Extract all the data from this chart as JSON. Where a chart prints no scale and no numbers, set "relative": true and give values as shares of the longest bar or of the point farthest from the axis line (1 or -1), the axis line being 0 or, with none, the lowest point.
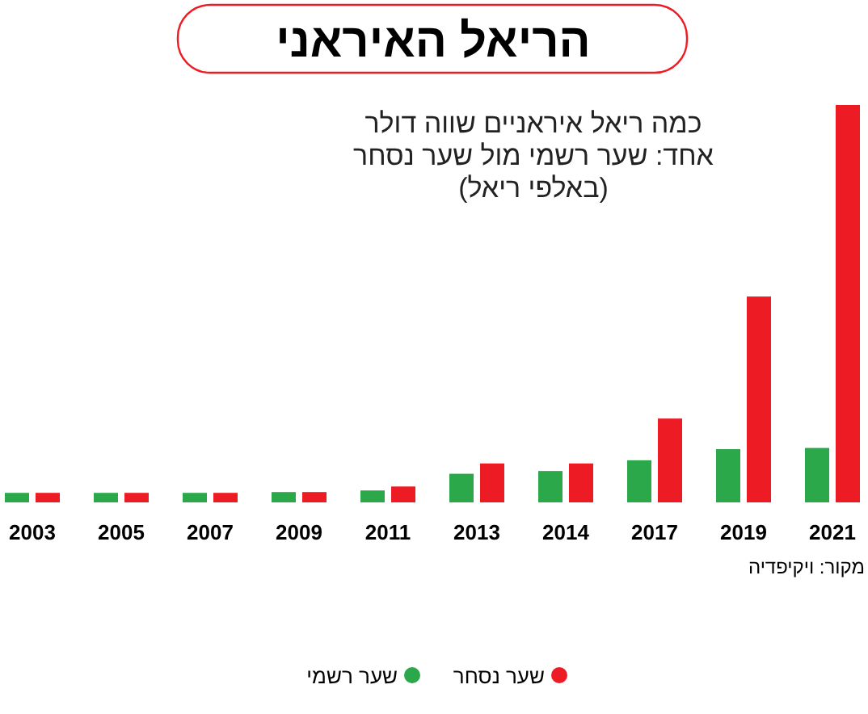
{
  "chart_data": {
    "type": "bar",
    "title": "הריאל האיראני",
    "subtitle": "כמה ריאל איראניים שווה דולר אחד: שער רשמי מול שער נסחר (באלפי ריאל)",
    "categories": [
      "2003",
      "2005",
      "2007",
      "2009",
      "2011",
      "2013",
      "2014",
      "2017",
      "2019",
      "2021"
    ],
    "relative": true,
    "series": [
      {
        "name": "שער רשמי",
        "color": "#2aa84a",
        "values": [
          0.024,
          0.024,
          0.024,
          0.026,
          0.03,
          0.072,
          0.079,
          0.106,
          0.134,
          0.137
        ]
      },
      {
        "name": "שער נסחר",
        "color": "#ed1c24",
        "values": [
          0.024,
          0.024,
          0.024,
          0.026,
          0.04,
          0.098,
          0.098,
          0.211,
          0.518,
          1
        ]
      }
    ],
    "annotations": [
      "מקור: ויקיפדיה"
    ],
    "legend": "bottom"
  }
}
